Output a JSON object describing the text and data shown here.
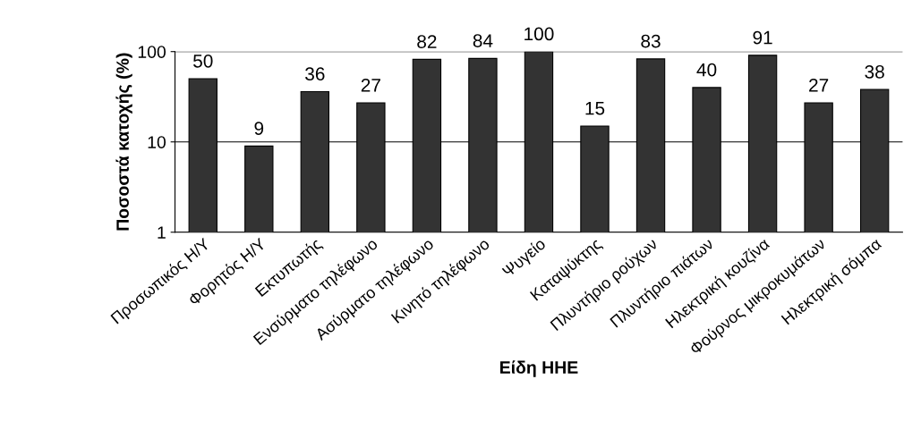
{
  "chart_data": {
    "type": "bar",
    "xlabel": "Είδη ΗΗΕ",
    "ylabel": "Ποσοστά κατοχής (%)",
    "categories": [
      "Προσωπικός Η/Υ",
      "Φορητός Η/Υ",
      "Εκτυπωτής",
      "Ενσύρματο τηλέφωνο",
      "Ασύρματο τηλέφωνο",
      "Κινητό τηλέφωνο",
      "Ψυγείο",
      "Καταψύκτης",
      "Πλυντήριο ρούχων",
      "Πλυντήριο πιάτων",
      "Ηλεκτρική κουζίνα",
      "Φούρνος μικροκυμάτων",
      "Ηλεκτρική σόμπα"
    ],
    "values": [
      50,
      9,
      36,
      27,
      82,
      84,
      100,
      15,
      83,
      40,
      91,
      27,
      38
    ],
    "color": "#333333",
    "log": true,
    "ylim": [
      1,
      100
    ],
    "yticks": [
      1,
      10,
      100
    ],
    "grid": "y",
    "data_labels": true
  }
}
